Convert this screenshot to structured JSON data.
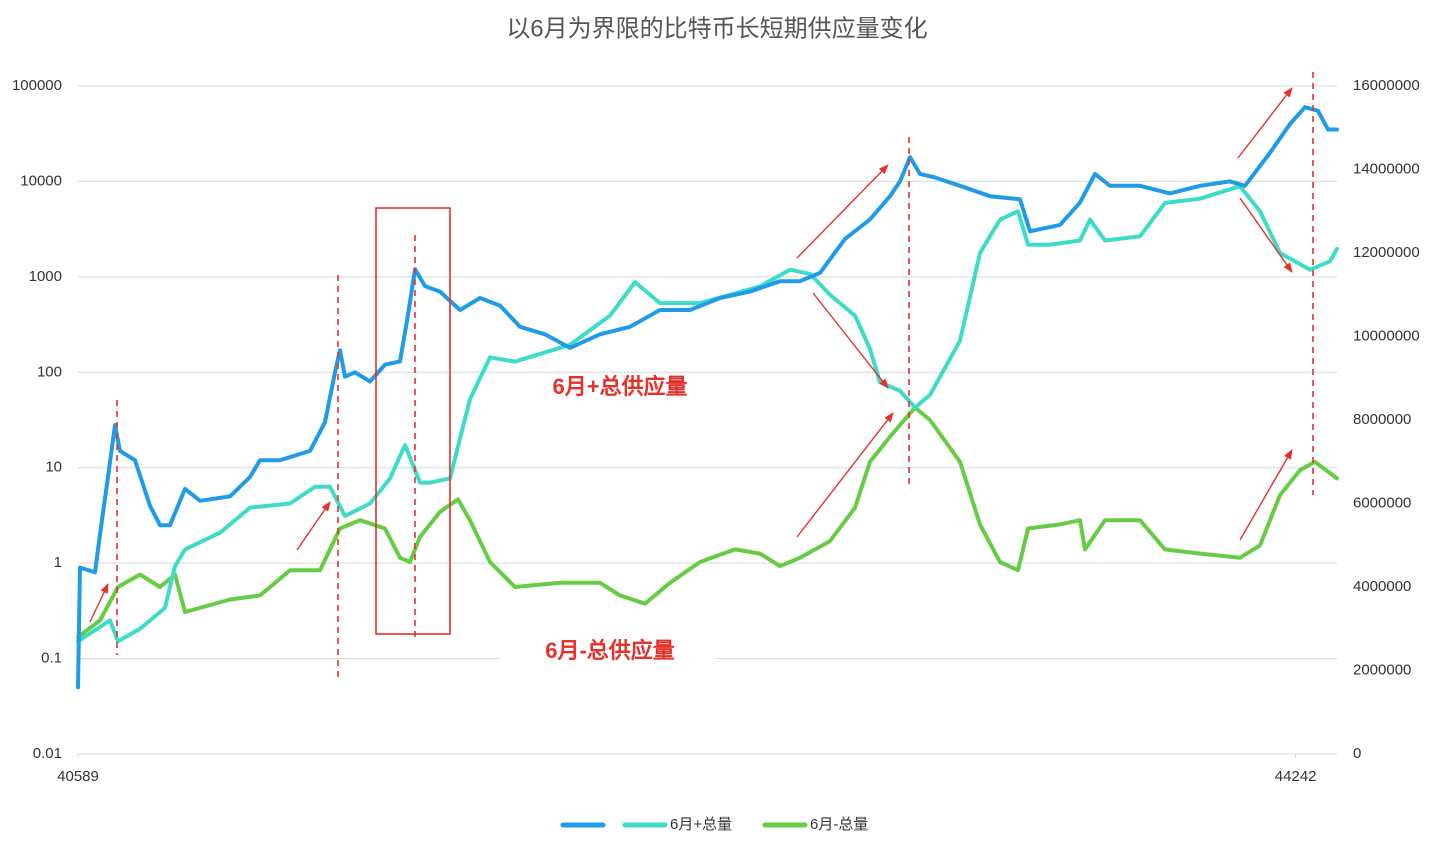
{
  "chart_data": {
    "type": "line",
    "title": "以6月为界限的比特币长短期供应量变化",
    "annotations": [
      "6月+总供应量",
      "6月-总供应量"
    ],
    "xlim": [
      40589,
      44366
    ],
    "xticks": [
      40589,
      44242
    ],
    "ylim": [
      0.01,
      100000
    ],
    "yticks": [
      0.01,
      0.1,
      1,
      10,
      100,
      1000,
      10000,
      100000
    ],
    "ylog": true,
    "y2lim": [
      0,
      16000000
    ],
    "y2ticks": [
      0,
      2000000,
      4000000,
      6000000,
      8000000,
      10000000,
      12000000,
      14000000,
      16000000
    ],
    "grid": true,
    "legend": "bottom",
    "series": [
      {
        "color": "#1f9be8",
        "x": [
          40589,
          40595,
          40640,
          40655,
          40679,
          40700,
          40715,
          40760,
          40805,
          40835,
          40865,
          40910,
          40955,
          41045,
          41105,
          41135,
          41195,
          41285,
          41330,
          41360,
          41375,
          41390,
          41420,
          41465,
          41510,
          41555,
          41579,
          41600,
          41630,
          41675,
          41735,
          41795,
          41855,
          41915,
          41990,
          42065,
          42155,
          42245,
          42335,
          42425,
          42515,
          42605,
          42695,
          42755,
          42815,
          42890,
          42965,
          43025,
          43055,
          43085,
          43115,
          43160,
          43235,
          43325,
          43415,
          43445,
          43535,
          43595,
          43640,
          43685,
          43775,
          43865,
          43955,
          44045,
          44090,
          44165,
          44225,
          44270,
          44309,
          44339,
          44366
        ],
        "values": [
          0.05,
          0.9,
          0.8,
          2,
          8,
          28,
          15,
          12,
          4,
          2.5,
          2.5,
          6,
          4.5,
          5,
          8,
          12,
          12,
          15,
          30,
          100,
          170,
          90,
          100,
          80,
          120,
          130,
          400,
          1200,
          800,
          700,
          450,
          600,
          500,
          300,
          250,
          180,
          250,
          300,
          450,
          450,
          600,
          700,
          900,
          900,
          1100,
          2500,
          4000,
          7000,
          10000,
          18000,
          12000,
          11000,
          9000,
          7000,
          6500,
          3000,
          3500,
          6000,
          12000,
          9000,
          9000,
          7500,
          9000,
          10000,
          9000,
          20000,
          40000,
          60000,
          55000,
          35000,
          35000
        ]
      },
      {
        "name": "6月+总量",
        "color": "#3ddcc9",
        "axis": "y2",
        "x": [
          40589,
          40685,
          40709,
          40775,
          40850,
          40880,
          40910,
          41015,
          41105,
          41225,
          41300,
          41345,
          41390,
          41465,
          41525,
          41570,
          41615,
          41645,
          41705,
          41765,
          41825,
          41900,
          42065,
          42185,
          42260,
          42335,
          42455,
          42545,
          42635,
          42725,
          42785,
          42845,
          42920,
          42965,
          42995,
          43055,
          43100,
          43145,
          43235,
          43295,
          43355,
          43409,
          43439,
          43505,
          43595,
          43625,
          43670,
          43775,
          43850,
          43955,
          44075,
          44135,
          44195,
          44285,
          44345,
          44366
        ],
        "values": [
          2700000,
          3200000,
          2700000,
          3000000,
          3500000,
          4500000,
          4900000,
          5300000,
          5900000,
          6000000,
          6400000,
          6400000,
          5700000,
          6000000,
          6600000,
          7400000,
          6500000,
          6500000,
          6600000,
          8500000,
          9500000,
          9400000,
          9800000,
          10500000,
          11300000,
          10800000,
          10800000,
          11000000,
          11200000,
          11600000,
          11500000,
          11000000,
          10500000,
          9700000,
          8900000,
          8700000,
          8300000,
          8600000,
          9900000,
          12000000,
          12800000,
          13000000,
          12200000,
          12200000,
          12300000,
          12800000,
          12300000,
          12400000,
          13200000,
          13300000,
          13600000,
          13000000,
          12000000,
          11600000,
          11800000,
          12100000
        ]
      },
      {
        "name": "6月-总量",
        "color": "#66cc44",
        "axis": "y2",
        "x": [
          40589,
          40655,
          40709,
          40775,
          40835,
          40880,
          40910,
          41045,
          41135,
          41225,
          41315,
          41375,
          41435,
          41510,
          41555,
          41585,
          41615,
          41675,
          41729,
          41765,
          41825,
          41900,
          42035,
          42155,
          42215,
          42290,
          42365,
          42455,
          42560,
          42635,
          42695,
          42755,
          42845,
          42920,
          42965,
          43025,
          43100,
          43145,
          43235,
          43295,
          43355,
          43409,
          43439,
          43535,
          43595,
          43610,
          43670,
          43775,
          43850,
          43955,
          44075,
          44135,
          44195,
          44255,
          44300,
          44366
        ],
        "values": [
          2800000,
          3200000,
          4000000,
          4300000,
          4000000,
          4300000,
          3400000,
          3700000,
          3800000,
          4400000,
          4400000,
          5400000,
          5600000,
          5400000,
          4700000,
          4600000,
          5200000,
          5800000,
          6100000,
          5600000,
          4600000,
          4000000,
          4100000,
          4100000,
          3800000,
          3600000,
          4100000,
          4600000,
          4900000,
          4800000,
          4500000,
          4700000,
          5100000,
          5900000,
          7000000,
          7600000,
          8300000,
          8000000,
          7000000,
          5500000,
          4600000,
          4400000,
          5400000,
          5500000,
          5600000,
          4900000,
          5600000,
          5600000,
          4900000,
          4800000,
          4700000,
          5000000,
          6200000,
          6800000,
          7000000,
          6600000
        ]
      }
    ]
  }
}
